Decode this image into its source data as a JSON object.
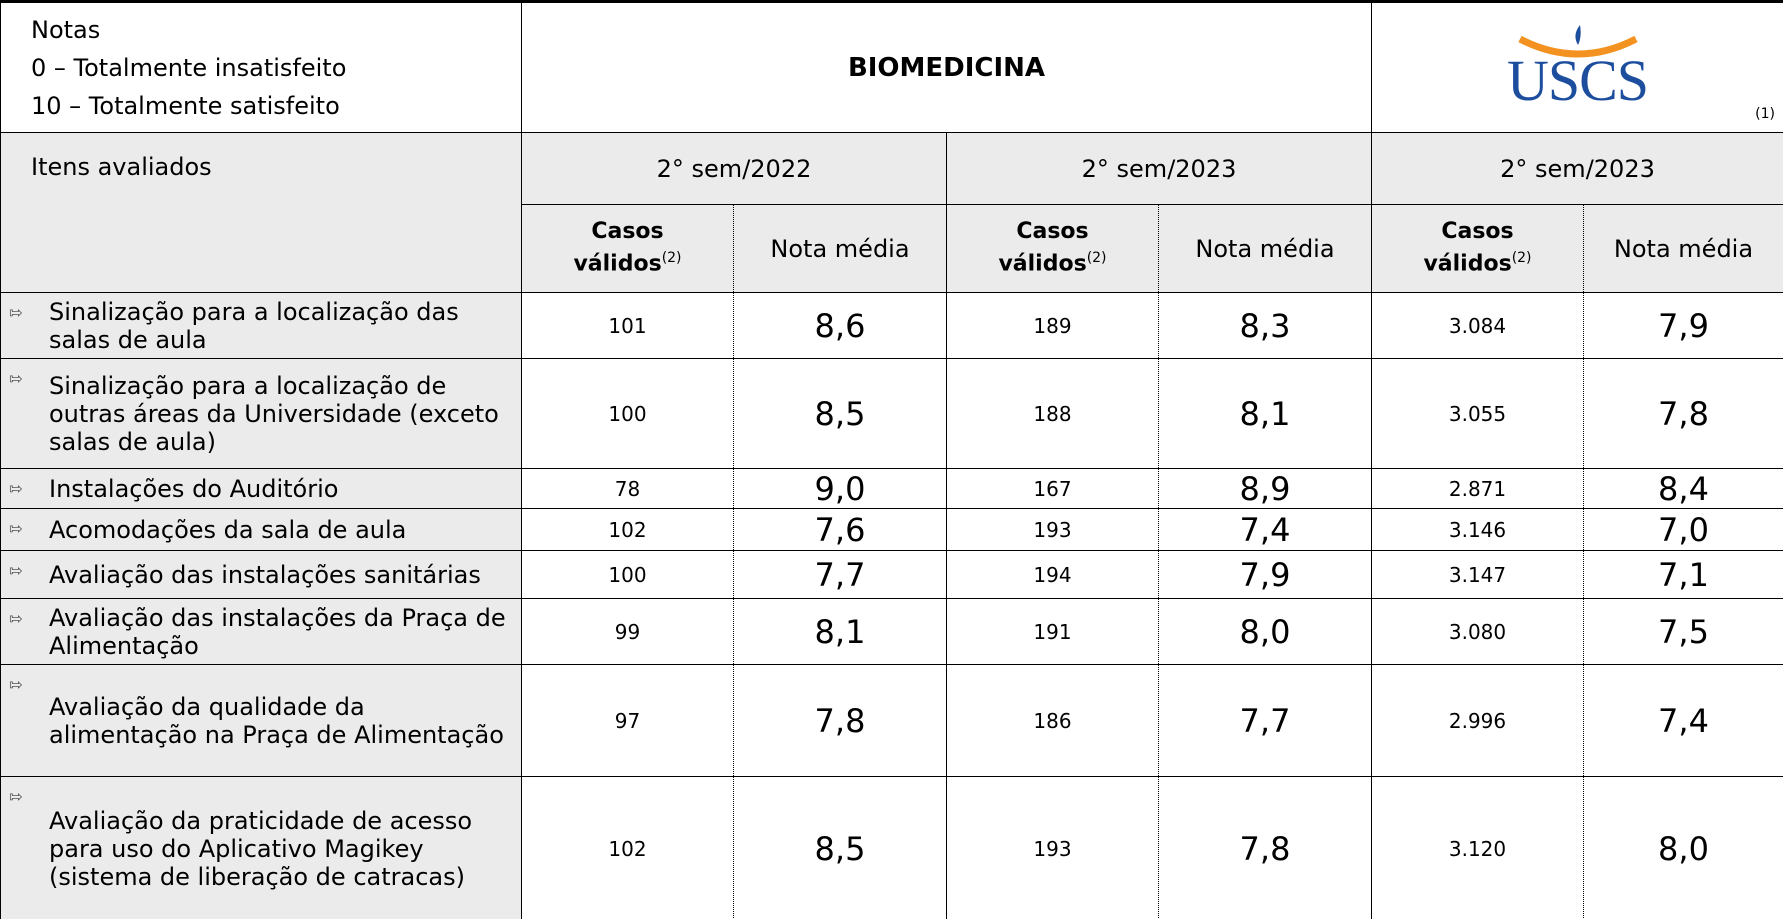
{
  "notes": {
    "title": "Notas",
    "lines": [
      "0 – Totalmente insatisfeito",
      "10 – Totalmente satisfeito"
    ]
  },
  "title": "BIOMEDICINA",
  "logo": {
    "text": "USCS",
    "footnote": "(1)"
  },
  "table": {
    "items_header": "Itens avaliados",
    "groups": [
      "2° sem/2022",
      "2° sem/2023",
      "2° sem/2023"
    ],
    "casos_label": "Casos\nválidos",
    "casos_note": "(2)",
    "nota_label": "Nota média",
    "rows": [
      {
        "item": "Sinalização para a localização das salas de aula",
        "values": [
          "101",
          "8,6",
          "189",
          "8,3",
          "3.084",
          "7,9"
        ]
      },
      {
        "item": "Sinalização para a localização de outras áreas da Universidade (exceto salas de aula)",
        "values": [
          "100",
          "8,5",
          "188",
          "8,1",
          "3.055",
          "7,8"
        ]
      },
      {
        "item": "Instalações do Auditório",
        "values": [
          "78",
          "9,0",
          "167",
          "8,9",
          "2.871",
          "8,4"
        ]
      },
      {
        "item": "Acomodações da sala de aula",
        "values": [
          "102",
          "7,6",
          "193",
          "7,4",
          "3.146",
          "7,0"
        ]
      },
      {
        "item": "Avaliação das instalações sanitárias",
        "values": [
          "100",
          "7,7",
          "194",
          "7,9",
          "3.147",
          "7,1"
        ]
      },
      {
        "item": "Avaliação das instalações da Praça de Alimentação",
        "values": [
          "99",
          "8,1",
          "191",
          "8,0",
          "3.080",
          "7,5"
        ]
      },
      {
        "item": "Avaliação da qualidade da alimentação na Praça de Alimentação",
        "values": [
          "97",
          "7,8",
          "186",
          "7,7",
          "2.996",
          "7,4"
        ]
      },
      {
        "item": "Avaliação da praticidade de acesso para uso do Aplicativo Magikey (sistema de liberação de catracas)",
        "values": [
          "102",
          "8,5",
          "193",
          "7,8",
          "3.120",
          "8,0"
        ]
      }
    ]
  }
}
